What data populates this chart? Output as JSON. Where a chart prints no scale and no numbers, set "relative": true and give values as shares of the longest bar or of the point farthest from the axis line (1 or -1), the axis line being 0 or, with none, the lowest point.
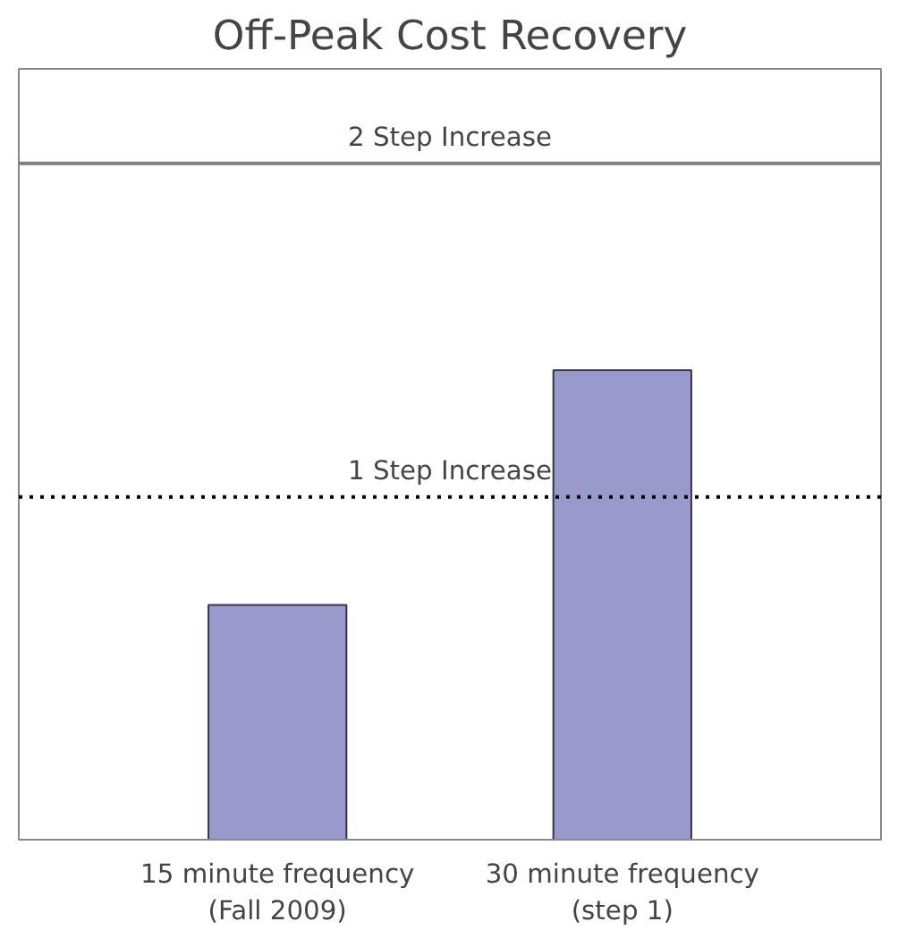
{
  "chart_data": {
    "type": "bar",
    "title": "Off-Peak Cost Recovery",
    "relative": true,
    "categories": [
      "15 minute frequency\n(Fall 2009)",
      "30 minute frequency\n(step 1)"
    ],
    "values": [
      0.5,
      1
    ],
    "color": "#9999cc",
    "grid": false,
    "ref_lines": [
      {
        "axis": "y",
        "value": 1.44,
        "label": "2 Step Increase",
        "color": "#808080",
        "line_style": "solid"
      },
      {
        "axis": "y",
        "value": 0.73,
        "label": "1 Step Increase",
        "color": "#000000",
        "line_style": "dotted"
      }
    ]
  }
}
